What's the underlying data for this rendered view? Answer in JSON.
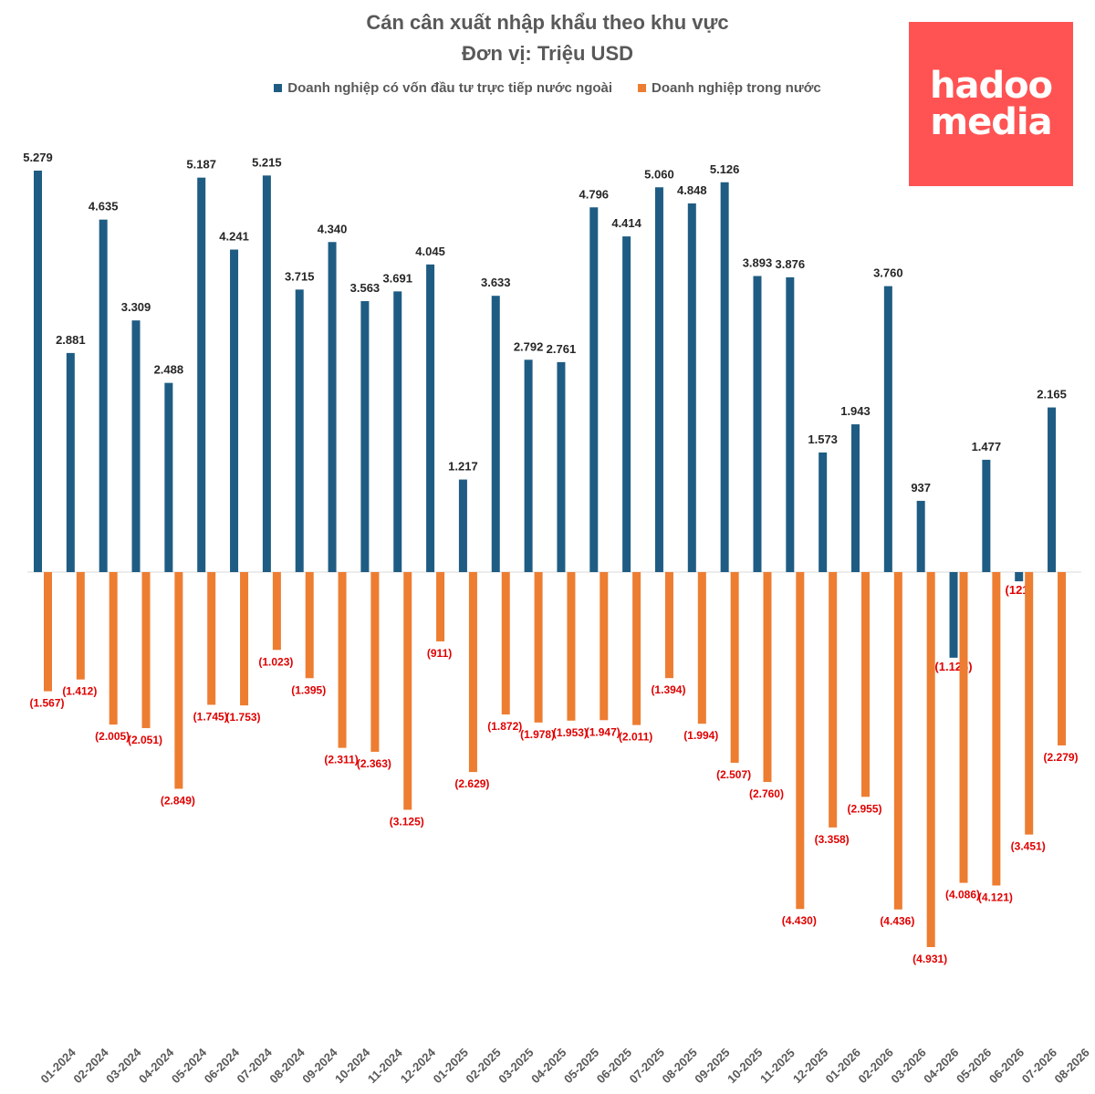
{
  "chart_data": {
    "type": "bar",
    "title": "Cán cân xuất nhập khẩu theo khu vực",
    "subtitle": "Đơn vị: Triệu USD",
    "legend_position": "top",
    "grid": false,
    "categories": [
      "01-2024",
      "02-2024",
      "03-2024",
      "04-2024",
      "05-2024",
      "06-2024",
      "07-2024",
      "08-2024",
      "09-2024",
      "10-2024",
      "11-2024",
      "12-2024",
      "01-2025",
      "02-2025",
      "03-2025",
      "04-2025",
      "05-2025",
      "06-2025",
      "07-2025",
      "08-2025",
      "09-2025",
      "10-2025",
      "11-2025",
      "12-2025",
      "01-2026",
      "02-2026",
      "03-2026",
      "04-2026",
      "05-2026",
      "06-2026",
      "07-2026",
      "08-2026"
    ],
    "series": [
      {
        "name": "Doanh nghiệp có vốn đầu tư trực tiếp nước ngoài",
        "color": "#1f5c83",
        "values": [
          5279,
          2881,
          4635,
          3309,
          2488,
          5187,
          4241,
          5215,
          3715,
          4340,
          3563,
          3691,
          4045,
          1217,
          3633,
          2792,
          2761,
          4796,
          4414,
          5060,
          4848,
          5126,
          3893,
          3876,
          1573,
          1943,
          3760,
          937,
          -1126,
          1477,
          -121,
          2165
        ],
        "labels": [
          "5.279",
          "2.881",
          "4.635",
          "3.309",
          "2.488",
          "5.187",
          "4.241",
          "5.215",
          "3.715",
          "4.340",
          "3.563",
          "3.691",
          "4.045",
          "1.217",
          "3.633",
          "2.792",
          "2.761",
          "4.796",
          "4.414",
          "5.060",
          "4.848",
          "5.126",
          "3.893",
          "3.876",
          "1.573",
          "1.943",
          "3.760",
          "937",
          "(1.126)",
          "1.477",
          "(121)",
          "2.165"
        ]
      },
      {
        "name": "Doanh nghiệp trong nước",
        "color": "#ed7d31",
        "values": [
          -1567,
          -1412,
          -2005,
          -2051,
          -2849,
          -1745,
          -1753,
          -1023,
          -1395,
          -2311,
          -2363,
          -3125,
          -911,
          -2629,
          -1872,
          -1978,
          -1953,
          -1947,
          -2011,
          -1394,
          -1994,
          -2507,
          -2760,
          -4430,
          -3358,
          -2955,
          -4436,
          -4931,
          -4086,
          -4121,
          -3451,
          -2279
        ],
        "labels": [
          "(1.567)",
          "(1.412)",
          "(2.005)",
          "(2.051)",
          "(2.849)",
          "(1.745)",
          "(1.753)",
          "(1.023)",
          "(1.395)",
          "(2.311)",
          "(2.363)",
          "(3.125)",
          "(911)",
          "(2.629)",
          "(1.872)",
          "(1.978)",
          "(1.953)",
          "(1.947)",
          "(2.011)",
          "(1.394)",
          "(1.994)",
          "(2.507)",
          "(2.760)",
          "(4.430)",
          "(3.358)",
          "(2.955)",
          "(4.436)",
          "(4.931)",
          "(4.086)",
          "(4.121)",
          "(3.451)",
          "(2.279)"
        ]
      }
    ],
    "negative_label_color": "#e00000",
    "positive_label_color": "#262626"
  },
  "logo": {
    "line1": "hadoo",
    "line2": "media"
  }
}
